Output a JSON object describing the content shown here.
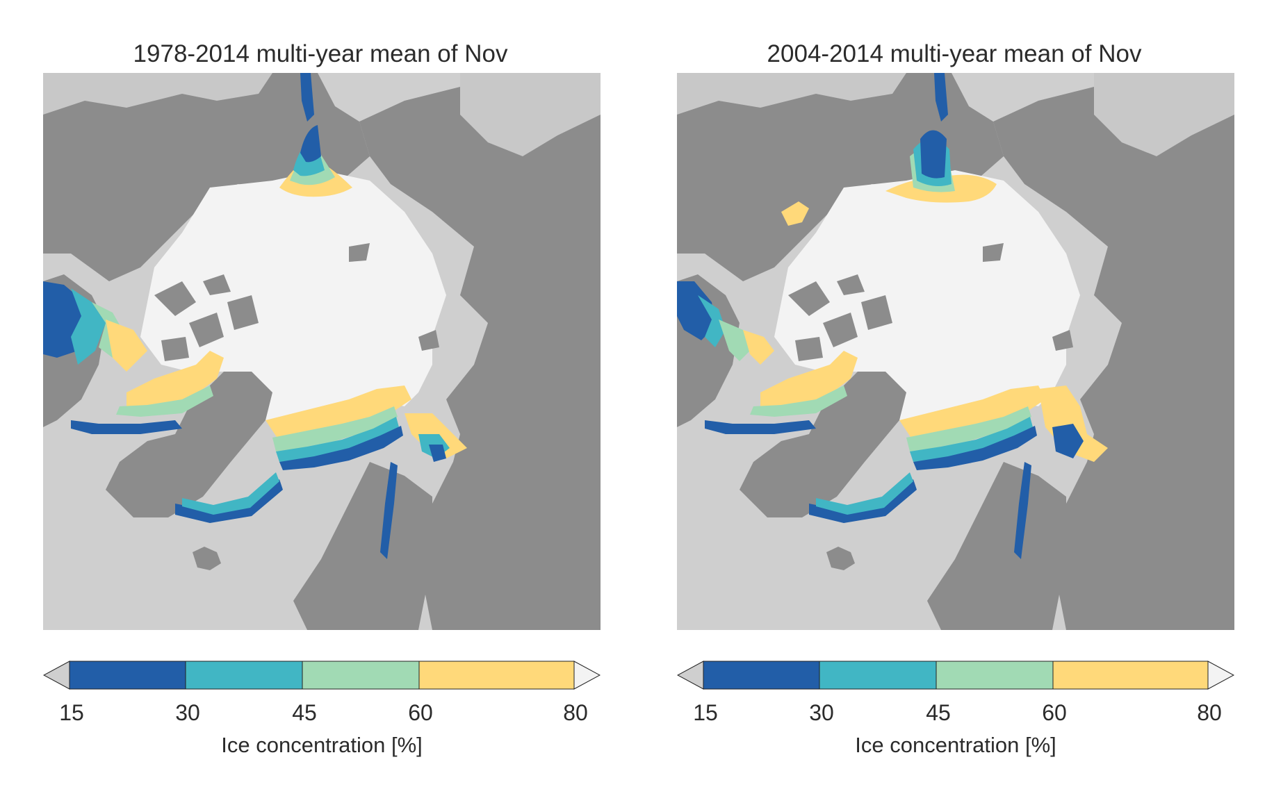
{
  "panels": [
    {
      "title": "1978-2014 multi-year mean of Nov",
      "variant": "early",
      "colorbar": {
        "ticks": [
          "15",
          "30",
          "45",
          "60",
          "80"
        ],
        "label": "Ice concentration [%]"
      }
    },
    {
      "title": "2004-2014 multi-year mean of Nov",
      "variant": "recent",
      "colorbar": {
        "ticks": [
          "15",
          "30",
          "45",
          "60",
          "80"
        ],
        "label": "Ice concentration [%]"
      }
    }
  ],
  "legend": {
    "bins": [
      {
        "from": 15,
        "to": 30,
        "color": "#225ea8"
      },
      {
        "from": 30,
        "to": 45,
        "color": "#41b6c4"
      },
      {
        "from": 45,
        "to": 60,
        "color": "#a1dab4"
      },
      {
        "from": 60,
        "to": 80,
        "color": "#ffd97a"
      }
    ],
    "under_color": "#cfcfcf",
    "over_color": "#f3f3f3",
    "land_color": "#8c8c8c",
    "ocean_color": "#cfcfcf"
  }
}
